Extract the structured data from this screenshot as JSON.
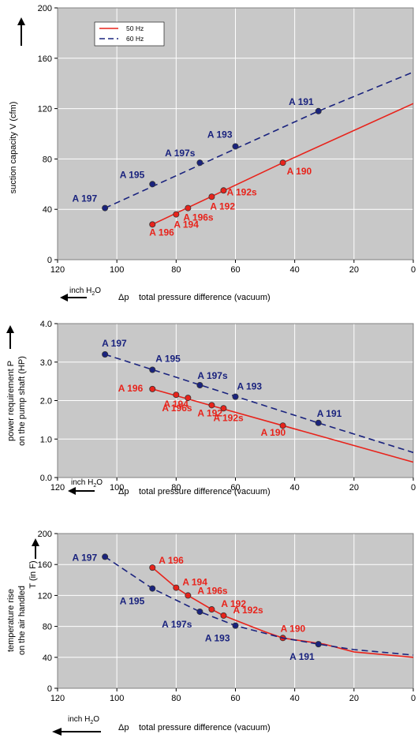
{
  "colors": {
    "hz50": "#e8231b",
    "hz60": "#1a237e",
    "plot_bg": "#c8c8c8",
    "grid": "#ffffff"
  },
  "legend": {
    "hz50": "50 Hz",
    "hz60": "60 Hz"
  },
  "common": {
    "dp": "Δp",
    "xlabel": "total pressure difference (vacuum)",
    "unit": "inch H",
    "unit_sub": "2",
    "unit_tail": "O"
  },
  "chart_data": [
    {
      "id": "suction",
      "type": "line",
      "ylabel": "suction capacity V (cfm)",
      "xlim": [
        120,
        0
      ],
      "ylim": [
        0,
        200
      ],
      "xticks": [
        120,
        100,
        80,
        60,
        40,
        20,
        0
      ],
      "yticks": [
        0,
        40,
        80,
        120,
        160,
        200
      ],
      "grid": true,
      "legend_position": "top-left",
      "series": [
        {
          "name": "50 Hz",
          "style": "solid",
          "line": [
            [
              88,
              28
            ],
            [
              44,
              77
            ],
            [
              0,
              124
            ]
          ],
          "points": [
            {
              "label": "A 196",
              "x": 88,
              "y": 28
            },
            {
              "label": "A 194",
              "x": 80,
              "y": 36
            },
            {
              "label": "A 196s",
              "x": 76,
              "y": 41
            },
            {
              "label": "A 192",
              "x": 68,
              "y": 50
            },
            {
              "label": "A 192s",
              "x": 64,
              "y": 55
            },
            {
              "label": "A 190",
              "x": 44,
              "y": 77
            }
          ]
        },
        {
          "name": "60 Hz",
          "style": "dashed",
          "line": [
            [
              104,
              41
            ],
            [
              32,
              118
            ],
            [
              0,
              149
            ]
          ],
          "points": [
            {
              "label": "A 197",
              "x": 104,
              "y": 41
            },
            {
              "label": "A 195",
              "x": 88,
              "y": 60
            },
            {
              "label": "A 197s",
              "x": 72,
              "y": 77
            },
            {
              "label": "A 193",
              "x": 60,
              "y": 90
            },
            {
              "label": "A 191",
              "x": 32,
              "y": 118
            }
          ]
        }
      ]
    },
    {
      "id": "power",
      "type": "line",
      "ylabel": [
        "power requirement P",
        "on the pump shaft (HP)"
      ],
      "xlim": [
        120,
        0
      ],
      "ylim": [
        0,
        4
      ],
      "xticks": [
        120,
        100,
        80,
        60,
        40,
        20,
        0
      ],
      "yticks": [
        0.0,
        1.0,
        2.0,
        3.0,
        4.0
      ],
      "ytick_labels": [
        "0.0",
        "1.0",
        "2.0",
        "3.0",
        "4.0"
      ],
      "grid": true,
      "series": [
        {
          "name": "50 Hz",
          "style": "solid",
          "line": [
            [
              88,
              2.3
            ],
            [
              44,
              1.35
            ],
            [
              0,
              0.4
            ]
          ],
          "points": [
            {
              "label": "A 196",
              "x": 88,
              "y": 2.3
            },
            {
              "label": "A 194",
              "x": 80,
              "y": 2.15
            },
            {
              "label": "A 196s",
              "x": 76,
              "y": 2.07
            },
            {
              "label": "A 192",
              "x": 68,
              "y": 1.88
            },
            {
              "label": "A 192s",
              "x": 64,
              "y": 1.8
            },
            {
              "label": "A 190",
              "x": 44,
              "y": 1.35
            }
          ]
        },
        {
          "name": "60 Hz",
          "style": "dashed",
          "line": [
            [
              104,
              3.2
            ],
            [
              32,
              1.42
            ],
            [
              0,
              0.65
            ]
          ],
          "points": [
            {
              "label": "A 197",
              "x": 104,
              "y": 3.2
            },
            {
              "label": "A 195",
              "x": 88,
              "y": 2.8
            },
            {
              "label": "A 197s",
              "x": 72,
              "y": 2.4
            },
            {
              "label": "A 193",
              "x": 60,
              "y": 2.1
            },
            {
              "label": "A 191",
              "x": 32,
              "y": 1.42
            }
          ]
        }
      ]
    },
    {
      "id": "temperature",
      "type": "line",
      "ylabel": [
        "temperature rise",
        "on the air handled"
      ],
      "ylabel_symbol": "T   (in F)",
      "xlim": [
        120,
        0
      ],
      "ylim": [
        0,
        200
      ],
      "xticks": [
        120,
        100,
        80,
        60,
        40,
        20,
        0
      ],
      "yticks": [
        0,
        40,
        80,
        120,
        160,
        200
      ],
      "grid": true,
      "series": [
        {
          "name": "50 Hz",
          "style": "solid",
          "line": [
            [
              88,
              156
            ],
            [
              80,
              130
            ],
            [
              76,
              120
            ],
            [
              68,
              102
            ],
            [
              64,
              94
            ],
            [
              58,
              85
            ],
            [
              50,
              73
            ],
            [
              44,
              65
            ],
            [
              30,
              57
            ],
            [
              20,
              47
            ],
            [
              0,
              40
            ]
          ],
          "points": [
            {
              "label": "A 196",
              "x": 88,
              "y": 156
            },
            {
              "label": "A 194",
              "x": 80,
              "y": 130
            },
            {
              "label": "A 196s",
              "x": 76,
              "y": 120
            },
            {
              "label": "A 192",
              "x": 68,
              "y": 102
            },
            {
              "label": "A 192s",
              "x": 64,
              "y": 94
            },
            {
              "label": "A 190",
              "x": 44,
              "y": 65
            }
          ]
        },
        {
          "name": "60 Hz",
          "style": "dashed",
          "line": [
            [
              104,
              170
            ],
            [
              88,
              129
            ],
            [
              72,
              99
            ],
            [
              60,
              81
            ],
            [
              44,
              65
            ],
            [
              32,
              57
            ],
            [
              20,
              50
            ],
            [
              0,
              43
            ]
          ],
          "points": [
            {
              "label": "A 197",
              "x": 104,
              "y": 170
            },
            {
              "label": "A 195",
              "x": 88,
              "y": 129
            },
            {
              "label": "A 197s",
              "x": 72,
              "y": 99
            },
            {
              "label": "A 193",
              "x": 60,
              "y": 81
            },
            {
              "label": "A 191",
              "x": 32,
              "y": 57
            }
          ]
        }
      ]
    }
  ]
}
